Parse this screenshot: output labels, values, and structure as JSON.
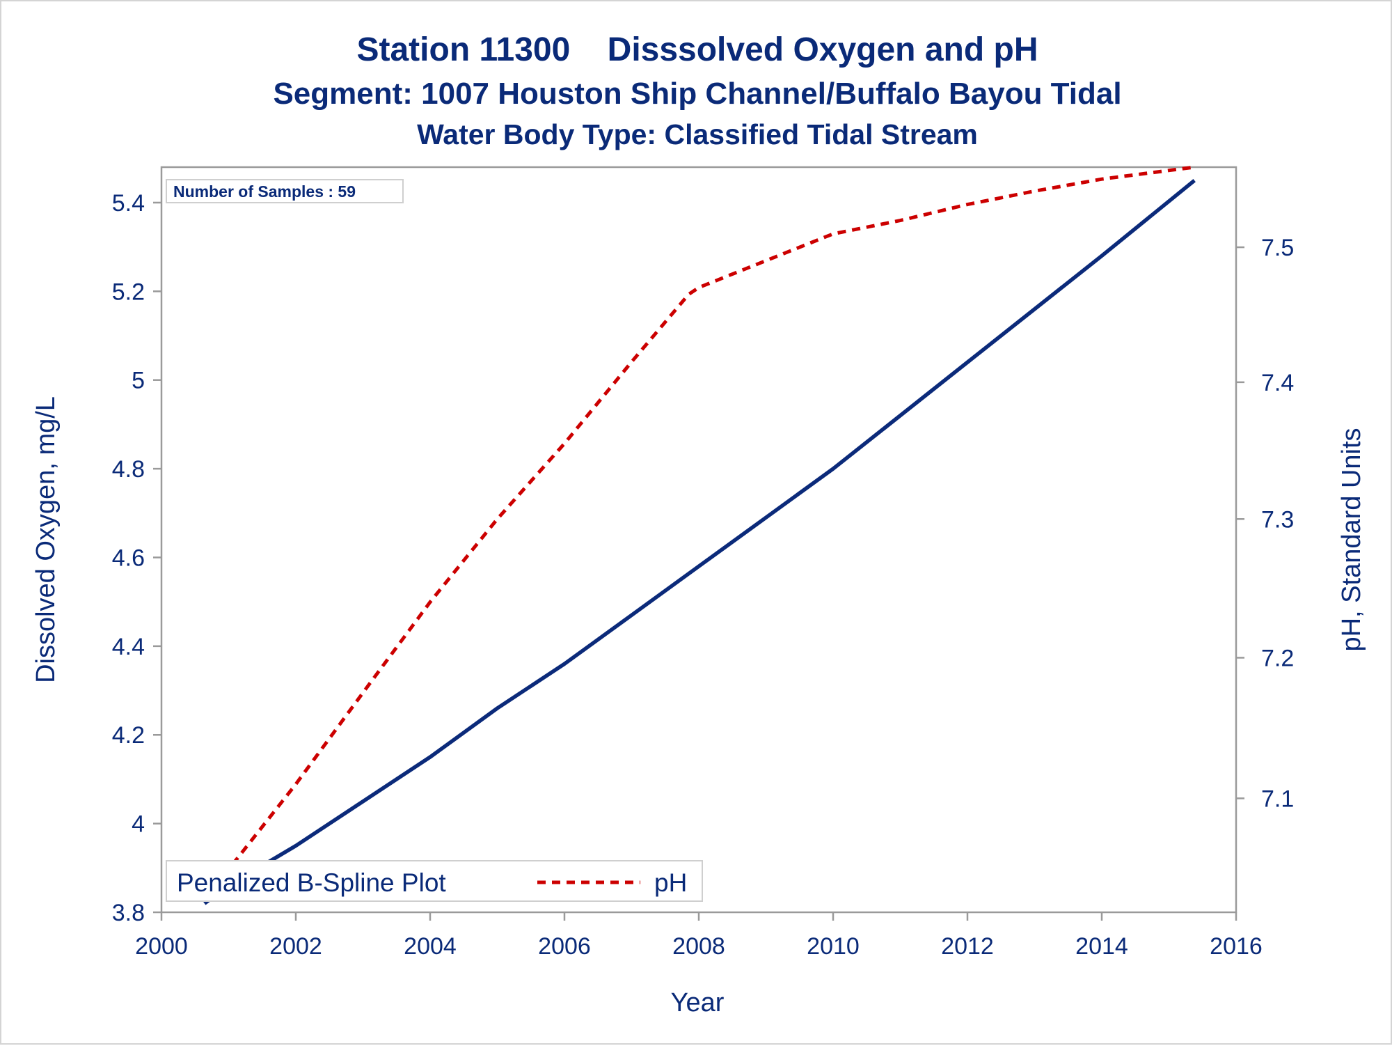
{
  "titles": {
    "main": "Station 11300    Disssolved Oxygen and pH",
    "segment": "Segment: 1007  Houston Ship Channel/Buffalo Bayou Tidal",
    "water_body": "Water Body Type: Classified Tidal Stream"
  },
  "inset": {
    "samples_label": "Number of Samples : 59"
  },
  "legend": {
    "title": "Penalized B-Spline Plot",
    "entries": [
      "pH"
    ]
  },
  "colors": {
    "do_line": "#0b2a7a",
    "ph_line": "#cc0000",
    "text": "#0a2a78",
    "frame": "#9a9a9a"
  },
  "chart_data": {
    "type": "line",
    "xlabel": "Year",
    "ylabel": "Dissolved Oxygen, mg/L",
    "y2label": "pH, Standard Units",
    "xlim": [
      2000,
      2016
    ],
    "ylim": [
      3.8,
      5.48
    ],
    "y2lim": [
      7.02,
      7.56
    ],
    "y2scale": "log",
    "xticks": [
      2000,
      2002,
      2004,
      2006,
      2008,
      2010,
      2012,
      2014,
      2016
    ],
    "yticks": [
      3.8,
      4,
      4.2,
      4.4,
      4.6,
      4.8,
      5,
      5.2,
      5.4
    ],
    "y2ticks": [
      7.1,
      7.2,
      7.3,
      7.4,
      7.5
    ],
    "grid": false,
    "legend_position": "bottom-left",
    "series": [
      {
        "axis": "y",
        "style": "solid",
        "x": [
          2000.64,
          2001.0,
          2002.0,
          2003.0,
          2004.0,
          2005.0,
          2006.0,
          2007.0,
          2008.0,
          2009.0,
          2010.0,
          2011.0,
          2012.0,
          2013.0,
          2014.0,
          2015.38
        ],
        "y": [
          3.82,
          3.86,
          3.95,
          4.05,
          4.15,
          4.26,
          4.36,
          4.47,
          4.58,
          4.69,
          4.8,
          4.92,
          5.04,
          5.16,
          5.28,
          5.45
        ]
      },
      {
        "name": "pH",
        "axis": "y2",
        "style": "dashed",
        "x": [
          2000.64,
          2001.0,
          2002.0,
          2003.0,
          2004.0,
          2005.0,
          2006.0,
          2007.0,
          2007.85,
          2008.0,
          2009.0,
          2010.0,
          2011.0,
          2012.0,
          2013.0,
          2014.0,
          2015.38
        ],
        "y": [
          7.03,
          7.05,
          7.11,
          7.175,
          7.24,
          7.3,
          7.355,
          7.415,
          7.465,
          7.47,
          7.49,
          7.51,
          7.52,
          7.532,
          7.542,
          7.551,
          7.56
        ]
      }
    ]
  }
}
